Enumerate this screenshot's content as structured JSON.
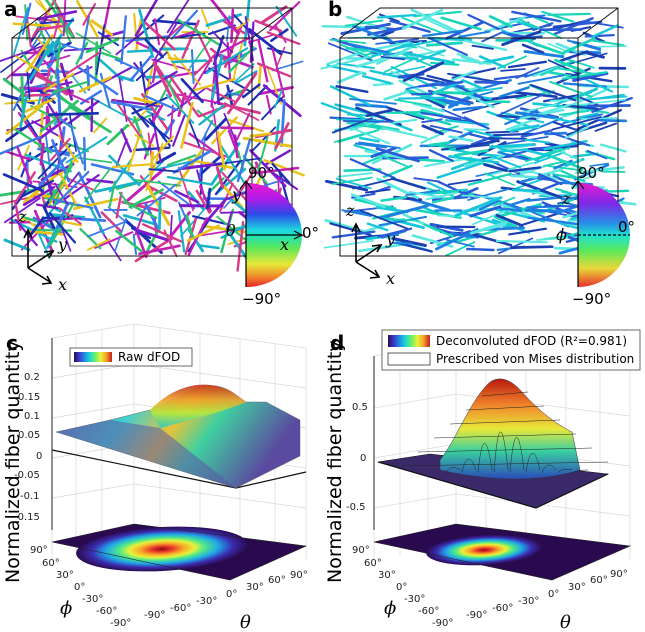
{
  "panels": {
    "a": {
      "label": "a",
      "axes": {
        "z": "z",
        "y": "y",
        "x": "x"
      },
      "wheel": {
        "top": "90°",
        "right": "0°",
        "bottom": "−90°",
        "angle": "θ",
        "vert": "y",
        "horiz": "x"
      }
    },
    "b": {
      "label": "b",
      "axes": {
        "z": "z",
        "y": "y",
        "x": "x"
      },
      "wheel": {
        "top": "90°",
        "right": "0°",
        "bottom": "−90°",
        "angle": "ϕ",
        "vert": "z"
      }
    },
    "c": {
      "label": "c",
      "legend": "Raw dFOD",
      "zlabel": "Normalized fiber quantity",
      "zticks": [
        "0.2",
        "0.15",
        "0.1",
        "0.05",
        "0",
        "-0.05",
        "-0.1",
        "-0.15"
      ],
      "phi_ticks": [
        "90°",
        "60°",
        "30°",
        "0°",
        "-30°",
        "-60°",
        "-90°"
      ],
      "theta_ticks": [
        "-90°",
        "-60°",
        "-30°",
        "0°",
        "30°",
        "60°",
        "90°"
      ],
      "xlabel": "θ",
      "ylabel": "ϕ"
    },
    "d": {
      "label": "d",
      "legend1": "Deconvoluted dFOD (R²=0.981)",
      "legend2": "Prescribed von Mises distribution",
      "zlabel": "Normalized fiber quantity",
      "zticks": [
        "0.5",
        "0",
        "-0.5"
      ],
      "phi_ticks": [
        "90°",
        "60°",
        "30°",
        "0°",
        "-30°",
        "-60°",
        "-90°"
      ],
      "theta_ticks": [
        "-90°",
        "-60°",
        "-30°",
        "0°",
        "30°",
        "60°",
        "90°"
      ],
      "xlabel": "θ",
      "ylabel": "ϕ"
    }
  },
  "colors": {
    "rainbow": [
      "#2a0a5e",
      "#3b3cc4",
      "#1f8ee8",
      "#1fd6d0",
      "#6af06a",
      "#e8f23a",
      "#f7a52a",
      "#d8331e",
      "#8a0a10"
    ],
    "fibers_a": [
      "#1b2fb3",
      "#18b3c9",
      "#2ec26a",
      "#c21fb8",
      "#7a1ac9",
      "#e8c21a",
      "#d63a8a",
      "#3a7ae8"
    ],
    "fibers_b": [
      "#17c6d9",
      "#1f7fe0",
      "#1ad6b8",
      "#2a5ad6",
      "#5ae8e0",
      "#1b3fb3"
    ],
    "surface_dark": "#2b0f4a"
  }
}
